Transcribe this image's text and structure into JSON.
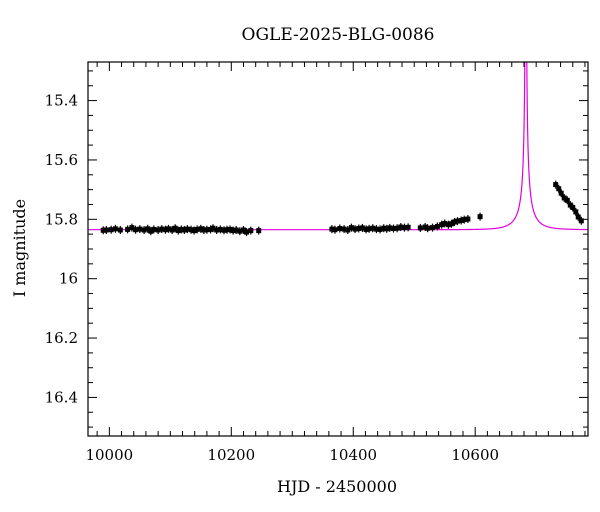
{
  "chart_data": {
    "type": "scatter",
    "title": "OGLE-2025-BLG-0086",
    "xlabel": "HJD - 2450000",
    "ylabel": "I magnitude",
    "xlim": [
      9965,
      10785
    ],
    "ylim": [
      16.53,
      15.27
    ],
    "y_inverted": true,
    "x_ticks": [
      10000,
      10200,
      10400,
      10600
    ],
    "y_ticks": [
      "15.4",
      "15.6",
      "15.8",
      "16",
      "16.2",
      "16.4"
    ],
    "model": {
      "color": "#e000e0",
      "baseline_mag": 15.835,
      "t0": 10683,
      "tE": 30,
      "u0": 0.0015,
      "fs": 0.04
    },
    "points": [
      [
        9990,
        15.837
      ],
      [
        9995,
        15.836
      ],
      [
        10003,
        15.835
      ],
      [
        10010,
        15.832
      ],
      [
        10018,
        15.836
      ],
      [
        10030,
        15.834
      ],
      [
        10037,
        15.828
      ],
      [
        10043,
        15.835
      ],
      [
        10050,
        15.833
      ],
      [
        10057,
        15.836
      ],
      [
        10063,
        15.832
      ],
      [
        10068,
        15.84
      ],
      [
        10073,
        15.834
      ],
      [
        10080,
        15.836
      ],
      [
        10086,
        15.833
      ],
      [
        10092,
        15.835
      ],
      [
        10097,
        15.832
      ],
      [
        10103,
        15.836
      ],
      [
        10108,
        15.83
      ],
      [
        10113,
        15.838
      ],
      [
        10118,
        15.834
      ],
      [
        10123,
        15.836
      ],
      [
        10128,
        15.833
      ],
      [
        10134,
        15.835
      ],
      [
        10139,
        15.838
      ],
      [
        10144,
        15.834
      ],
      [
        10150,
        15.832
      ],
      [
        10155,
        15.836
      ],
      [
        10160,
        15.835
      ],
      [
        10166,
        15.834
      ],
      [
        10170,
        15.83
      ],
      [
        10176,
        15.836
      ],
      [
        10182,
        15.834
      ],
      [
        10188,
        15.837
      ],
      [
        10193,
        15.835
      ],
      [
        10198,
        15.834
      ],
      [
        10203,
        15.838
      ],
      [
        10208,
        15.836
      ],
      [
        10214,
        15.84
      ],
      [
        10220,
        15.836
      ],
      [
        10225,
        15.843
      ],
      [
        10232,
        15.838
      ],
      [
        10245,
        15.838
      ],
      [
        10365,
        15.833
      ],
      [
        10370,
        15.835
      ],
      [
        10378,
        15.831
      ],
      [
        10385,
        15.833
      ],
      [
        10391,
        15.836
      ],
      [
        10397,
        15.828
      ],
      [
        10403,
        15.833
      ],
      [
        10409,
        15.831
      ],
      [
        10415,
        15.829
      ],
      [
        10421,
        15.834
      ],
      [
        10426,
        15.832
      ],
      [
        10432,
        15.83
      ],
      [
        10438,
        15.833
      ],
      [
        10444,
        15.834
      ],
      [
        10450,
        15.83
      ],
      [
        10455,
        15.832
      ],
      [
        10460,
        15.829
      ],
      [
        10466,
        15.831
      ],
      [
        10472,
        15.83
      ],
      [
        10478,
        15.826
      ],
      [
        10484,
        15.828
      ],
      [
        10490,
        15.827
      ],
      [
        10510,
        15.829
      ],
      [
        10518,
        15.826
      ],
      [
        10522,
        15.83
      ],
      [
        10530,
        15.828
      ],
      [
        10538,
        15.824
      ],
      [
        10545,
        15.818
      ],
      [
        10550,
        15.814
      ],
      [
        10556,
        15.818
      ],
      [
        10561,
        15.815
      ],
      [
        10566,
        15.809
      ],
      [
        10571,
        15.806
      ],
      [
        10577,
        15.804
      ],
      [
        10582,
        15.801
      ],
      [
        10588,
        15.799
      ],
      [
        10608,
        15.791
      ],
      [
        10732,
        15.683
      ],
      [
        10737,
        15.697
      ],
      [
        10741,
        15.712
      ],
      [
        10746,
        15.728
      ],
      [
        10751,
        15.736
      ],
      [
        10756,
        15.752
      ],
      [
        10760,
        15.76
      ],
      [
        10765,
        15.775
      ],
      [
        10769,
        15.792
      ],
      [
        10774,
        15.805
      ]
    ]
  }
}
